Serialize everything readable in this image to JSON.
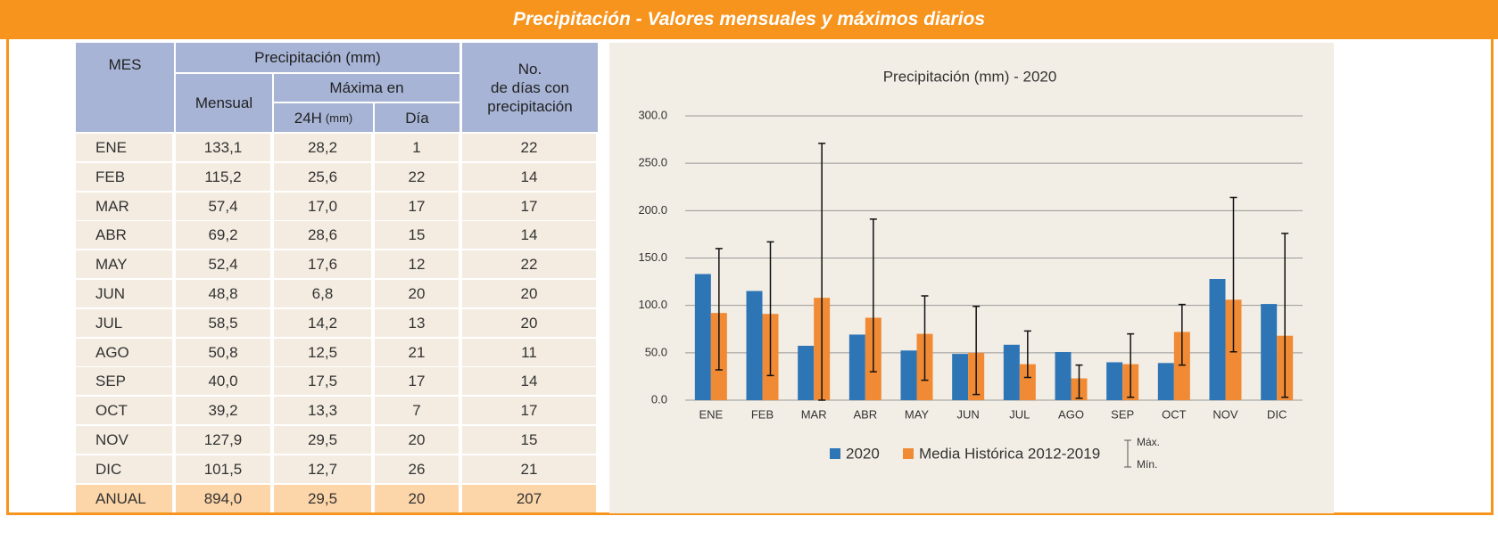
{
  "header": {
    "title": "Precipitación - Valores mensuales y máximos diarios"
  },
  "table": {
    "head": {
      "mes": "MES",
      "precip": "Precipitación (mm)",
      "mensual": "Mensual",
      "maxima": "Máxima en",
      "h24": "24H",
      "h24_unit": "(mm)",
      "dia": "Día",
      "dias": [
        "No.",
        "de días con",
        "precipitación"
      ]
    },
    "rows": [
      [
        "ENE",
        "133,1",
        "28,2",
        "1",
        "22"
      ],
      [
        "FEB",
        "115,2",
        "25,6",
        "22",
        "14"
      ],
      [
        "MAR",
        "57,4",
        "17,0",
        "17",
        "17"
      ],
      [
        "ABR",
        "69,2",
        "28,6",
        "15",
        "14"
      ],
      [
        "MAY",
        "52,4",
        "17,6",
        "12",
        "22"
      ],
      [
        "JUN",
        "48,8",
        "6,8",
        "20",
        "20"
      ],
      [
        "JUL",
        "58,5",
        "14,2",
        "13",
        "20"
      ],
      [
        "AGO",
        "50,8",
        "12,5",
        "21",
        "11"
      ],
      [
        "SEP",
        "40,0",
        "17,5",
        "17",
        "14"
      ],
      [
        "OCT",
        "39,2",
        "13,3",
        "7",
        "17"
      ],
      [
        "NOV",
        "127,9",
        "29,5",
        "20",
        "15"
      ],
      [
        "DIC",
        "101,5",
        "12,7",
        "26",
        "21"
      ]
    ],
    "total": [
      "ANUAL",
      "894,0",
      "29,5",
      "20",
      "207"
    ]
  },
  "chart_data": {
    "type": "bar",
    "title": "Precipitación (mm) - 2020",
    "categories": [
      "ENE",
      "FEB",
      "MAR",
      "ABR",
      "MAY",
      "JUN",
      "JUL",
      "AGO",
      "SEP",
      "OCT",
      "NOV",
      "DIC"
    ],
    "series": [
      {
        "name": "2020",
        "color": "#2e75b6",
        "values": [
          133.1,
          115.2,
          57.4,
          69.2,
          52.4,
          48.8,
          58.5,
          50.8,
          40.0,
          39.2,
          127.9,
          101.5
        ]
      },
      {
        "name": "Media Histórica 2012-2019",
        "color": "#f08a35",
        "values": [
          92,
          91,
          108,
          87,
          70,
          50,
          38,
          23,
          38,
          72,
          106,
          68
        ],
        "max": [
          160,
          167,
          271,
          191,
          110,
          99,
          73,
          37,
          70,
          101,
          214,
          176
        ],
        "min": [
          32,
          26,
          0,
          30,
          21,
          6,
          24,
          2,
          3,
          37,
          51,
          3
        ]
      }
    ],
    "error_legend": {
      "max": "Máx.",
      "min": "Mín."
    },
    "ylim": [
      0,
      300
    ],
    "yticks": [
      {
        "value": 0,
        "label": "0.0"
      },
      {
        "value": 50,
        "label": "50.0"
      },
      {
        "value": 100,
        "label": "100.0"
      },
      {
        "value": 150,
        "label": "150.0"
      },
      {
        "value": 200,
        "label": "200.0"
      },
      {
        "value": 250,
        "label": "250.0"
      },
      {
        "value": 300,
        "label": "300.0"
      }
    ],
    "grid": true,
    "legend": "bottom"
  }
}
